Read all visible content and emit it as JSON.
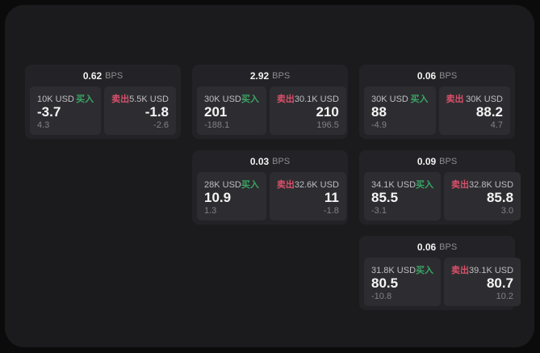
{
  "labels": {
    "bps_unit": "BPS",
    "buy": "买入",
    "sell": "卖出"
  },
  "colors": {
    "buy_green": "#3aa564",
    "sell_red": "#d9506a",
    "window_bg": "#1b1b1d",
    "card_bg": "#232327",
    "panel_bg": "#2d2d31"
  },
  "cards": [
    {
      "row": 1,
      "col": 1,
      "bps": "0.62",
      "buy": {
        "amount": "10K USD",
        "price": "-3.7",
        "delta": "4.3"
      },
      "sell": {
        "amount": "5.5K USD",
        "price": "-1.8",
        "delta": "-2.6"
      }
    },
    {
      "row": 1,
      "col": 2,
      "bps": "2.92",
      "buy": {
        "amount": "30K USD",
        "price": "201",
        "delta": "-188.1"
      },
      "sell": {
        "amount": "30.1K USD",
        "price": "210",
        "delta": "196.5"
      }
    },
    {
      "row": 1,
      "col": 3,
      "bps": "0.06",
      "buy": {
        "amount": "30K USD",
        "price": "88",
        "delta": "-4.9"
      },
      "sell": {
        "amount": "30K USD",
        "price": "88.2",
        "delta": "4.7"
      }
    },
    {
      "row": 2,
      "col": 2,
      "bps": "0.03",
      "buy": {
        "amount": "28K USD",
        "price": "10.9",
        "delta": "1.3"
      },
      "sell": {
        "amount": "32.6K USD",
        "price": "11",
        "delta": "-1.8"
      }
    },
    {
      "row": 2,
      "col": 3,
      "bps": "0.09",
      "buy": {
        "amount": "34.1K USD",
        "price": "85.5",
        "delta": "-3.1"
      },
      "sell": {
        "amount": "32.8K USD",
        "price": "85.8",
        "delta": "3.0"
      }
    },
    {
      "row": 3,
      "col": 3,
      "bps": "0.06",
      "buy": {
        "amount": "31.8K USD",
        "price": "80.5",
        "delta": "-10.8"
      },
      "sell": {
        "amount": "39.1K USD",
        "price": "80.7",
        "delta": "10.2"
      }
    }
  ]
}
